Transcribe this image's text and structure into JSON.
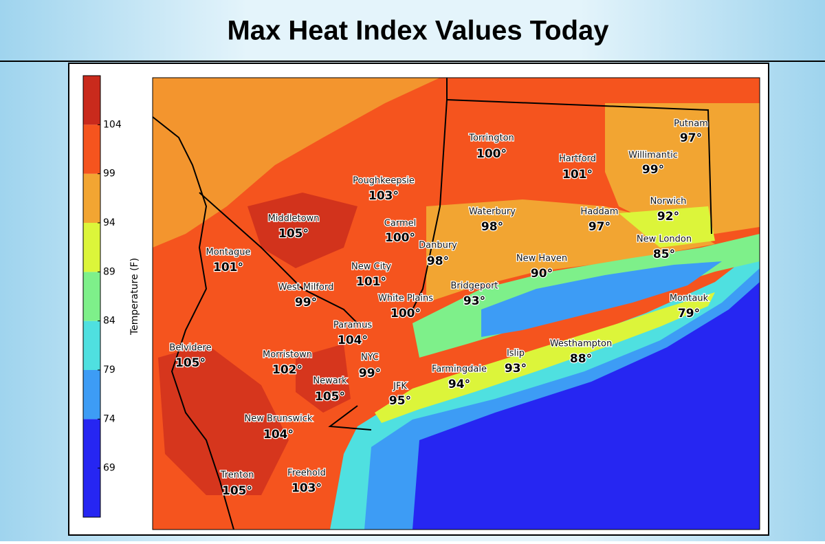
{
  "map": {
    "title": "Max Heat Index Values Today",
    "colorbar": {
      "label": "Temperature (F)",
      "bounds": [
        64,
        74,
        79,
        84,
        89,
        94,
        99,
        104,
        109
      ],
      "colors": [
        "#2626f2",
        "#3d9cf5",
        "#4fe0e0",
        "#7ef08a",
        "#dcf53a",
        "#f2a532",
        "#f5541e",
        "#c92a1c"
      ],
      "ticks": [
        104,
        99,
        94,
        89,
        84,
        79,
        74,
        69
      ]
    },
    "cities": [
      {
        "name": "Torrington",
        "label": "100°"
      },
      {
        "name": "Hartford",
        "label": "101°"
      },
      {
        "name": "Putnam",
        "label": "97°"
      },
      {
        "name": "Willimantic",
        "label": "99°"
      },
      {
        "name": "Poughkeepsie",
        "label": "103°"
      },
      {
        "name": "Waterbury",
        "label": "98°"
      },
      {
        "name": "Haddam",
        "label": "97°"
      },
      {
        "name": "Norwich",
        "label": "92°"
      },
      {
        "name": "Middletown",
        "label": "105°"
      },
      {
        "name": "Carmel",
        "label": "100°"
      },
      {
        "name": "Danbury",
        "label": "98°"
      },
      {
        "name": "New London",
        "label": "85°"
      },
      {
        "name": "Montague",
        "label": "101°"
      },
      {
        "name": "New Haven",
        "label": "90°"
      },
      {
        "name": "New City",
        "label": "101°"
      },
      {
        "name": "West Milford",
        "label": "99°"
      },
      {
        "name": "Bridgeport",
        "label": "93°"
      },
      {
        "name": "Montauk",
        "label": "79°"
      },
      {
        "name": "White Plains",
        "label": "100°"
      },
      {
        "name": "Paramus",
        "label": "104°"
      },
      {
        "name": "Belvidere",
        "label": "105°"
      },
      {
        "name": "Morristown",
        "label": "102°"
      },
      {
        "name": "Westhampton",
        "label": "88°"
      },
      {
        "name": "Islip",
        "label": "93°"
      },
      {
        "name": "NYC",
        "label": "99°"
      },
      {
        "name": "Farmingdale",
        "label": "94°"
      },
      {
        "name": "Newark",
        "label": "105°"
      },
      {
        "name": "JFK",
        "label": "95°"
      },
      {
        "name": "New Brunswick",
        "label": "104°"
      },
      {
        "name": "Trenton",
        "label": "105°"
      },
      {
        "name": "Freehold",
        "label": "103°"
      }
    ]
  }
}
